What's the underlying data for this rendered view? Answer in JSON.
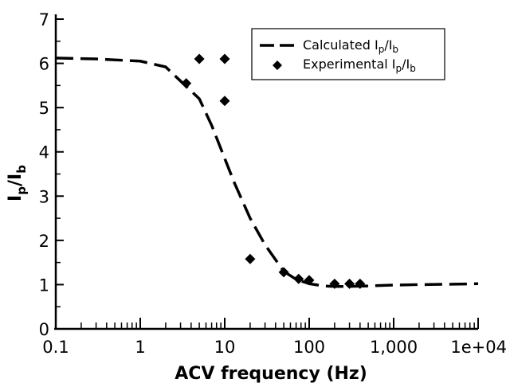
{
  "chart_data": {
    "type": "scatter",
    "title": "",
    "xlabel": "ACV frequency (Hz)",
    "ylabel": "Ip/Ib",
    "xscale": "log",
    "xlim": [
      0.1,
      10000
    ],
    "ylim": [
      0,
      7
    ],
    "grid": false,
    "legend_position": "top-right",
    "x_tick_labels": [
      "0.1",
      "1",
      "10",
      "100",
      "1,000",
      "1e+04"
    ],
    "y_tick_labels": [
      "0",
      "1",
      "2",
      "3",
      "4",
      "5",
      "6",
      "7"
    ],
    "series": [
      {
        "name": "Calculated Ip/Ib",
        "style": "dashed-line",
        "color": "#000000",
        "x": [
          0.1,
          0.3,
          1,
          2,
          3,
          5,
          7,
          10,
          13,
          20,
          30,
          50,
          70,
          100,
          150,
          200,
          300,
          500,
          1000,
          2000,
          5000,
          10000
        ],
        "y": [
          6.12,
          6.1,
          6.05,
          5.92,
          5.6,
          5.2,
          4.6,
          3.85,
          3.3,
          2.5,
          1.9,
          1.3,
          1.12,
          1.02,
          0.97,
          0.96,
          0.96,
          0.97,
          0.99,
          1.0,
          1.01,
          1.02
        ]
      },
      {
        "name": "Experimental Ip/Ib",
        "style": "diamond-markers",
        "color": "#000000",
        "x": [
          3.5,
          5,
          10,
          10,
          20,
          50,
          75,
          100,
          200,
          300,
          400
        ],
        "y": [
          5.55,
          6.1,
          6.1,
          5.15,
          1.58,
          1.28,
          1.13,
          1.1,
          1.02,
          1.02,
          1.02
        ]
      }
    ]
  },
  "legend": {
    "calculated_label": "Calculated I",
    "experimental_label": "Experimental I",
    "sub_p": "p",
    "slash": "/I",
    "sub_b": "b"
  },
  "axes": {
    "y_title_main": "I",
    "y_title_sub_p": "p",
    "y_title_slash": "/I",
    "y_title_sub_b": "b"
  }
}
